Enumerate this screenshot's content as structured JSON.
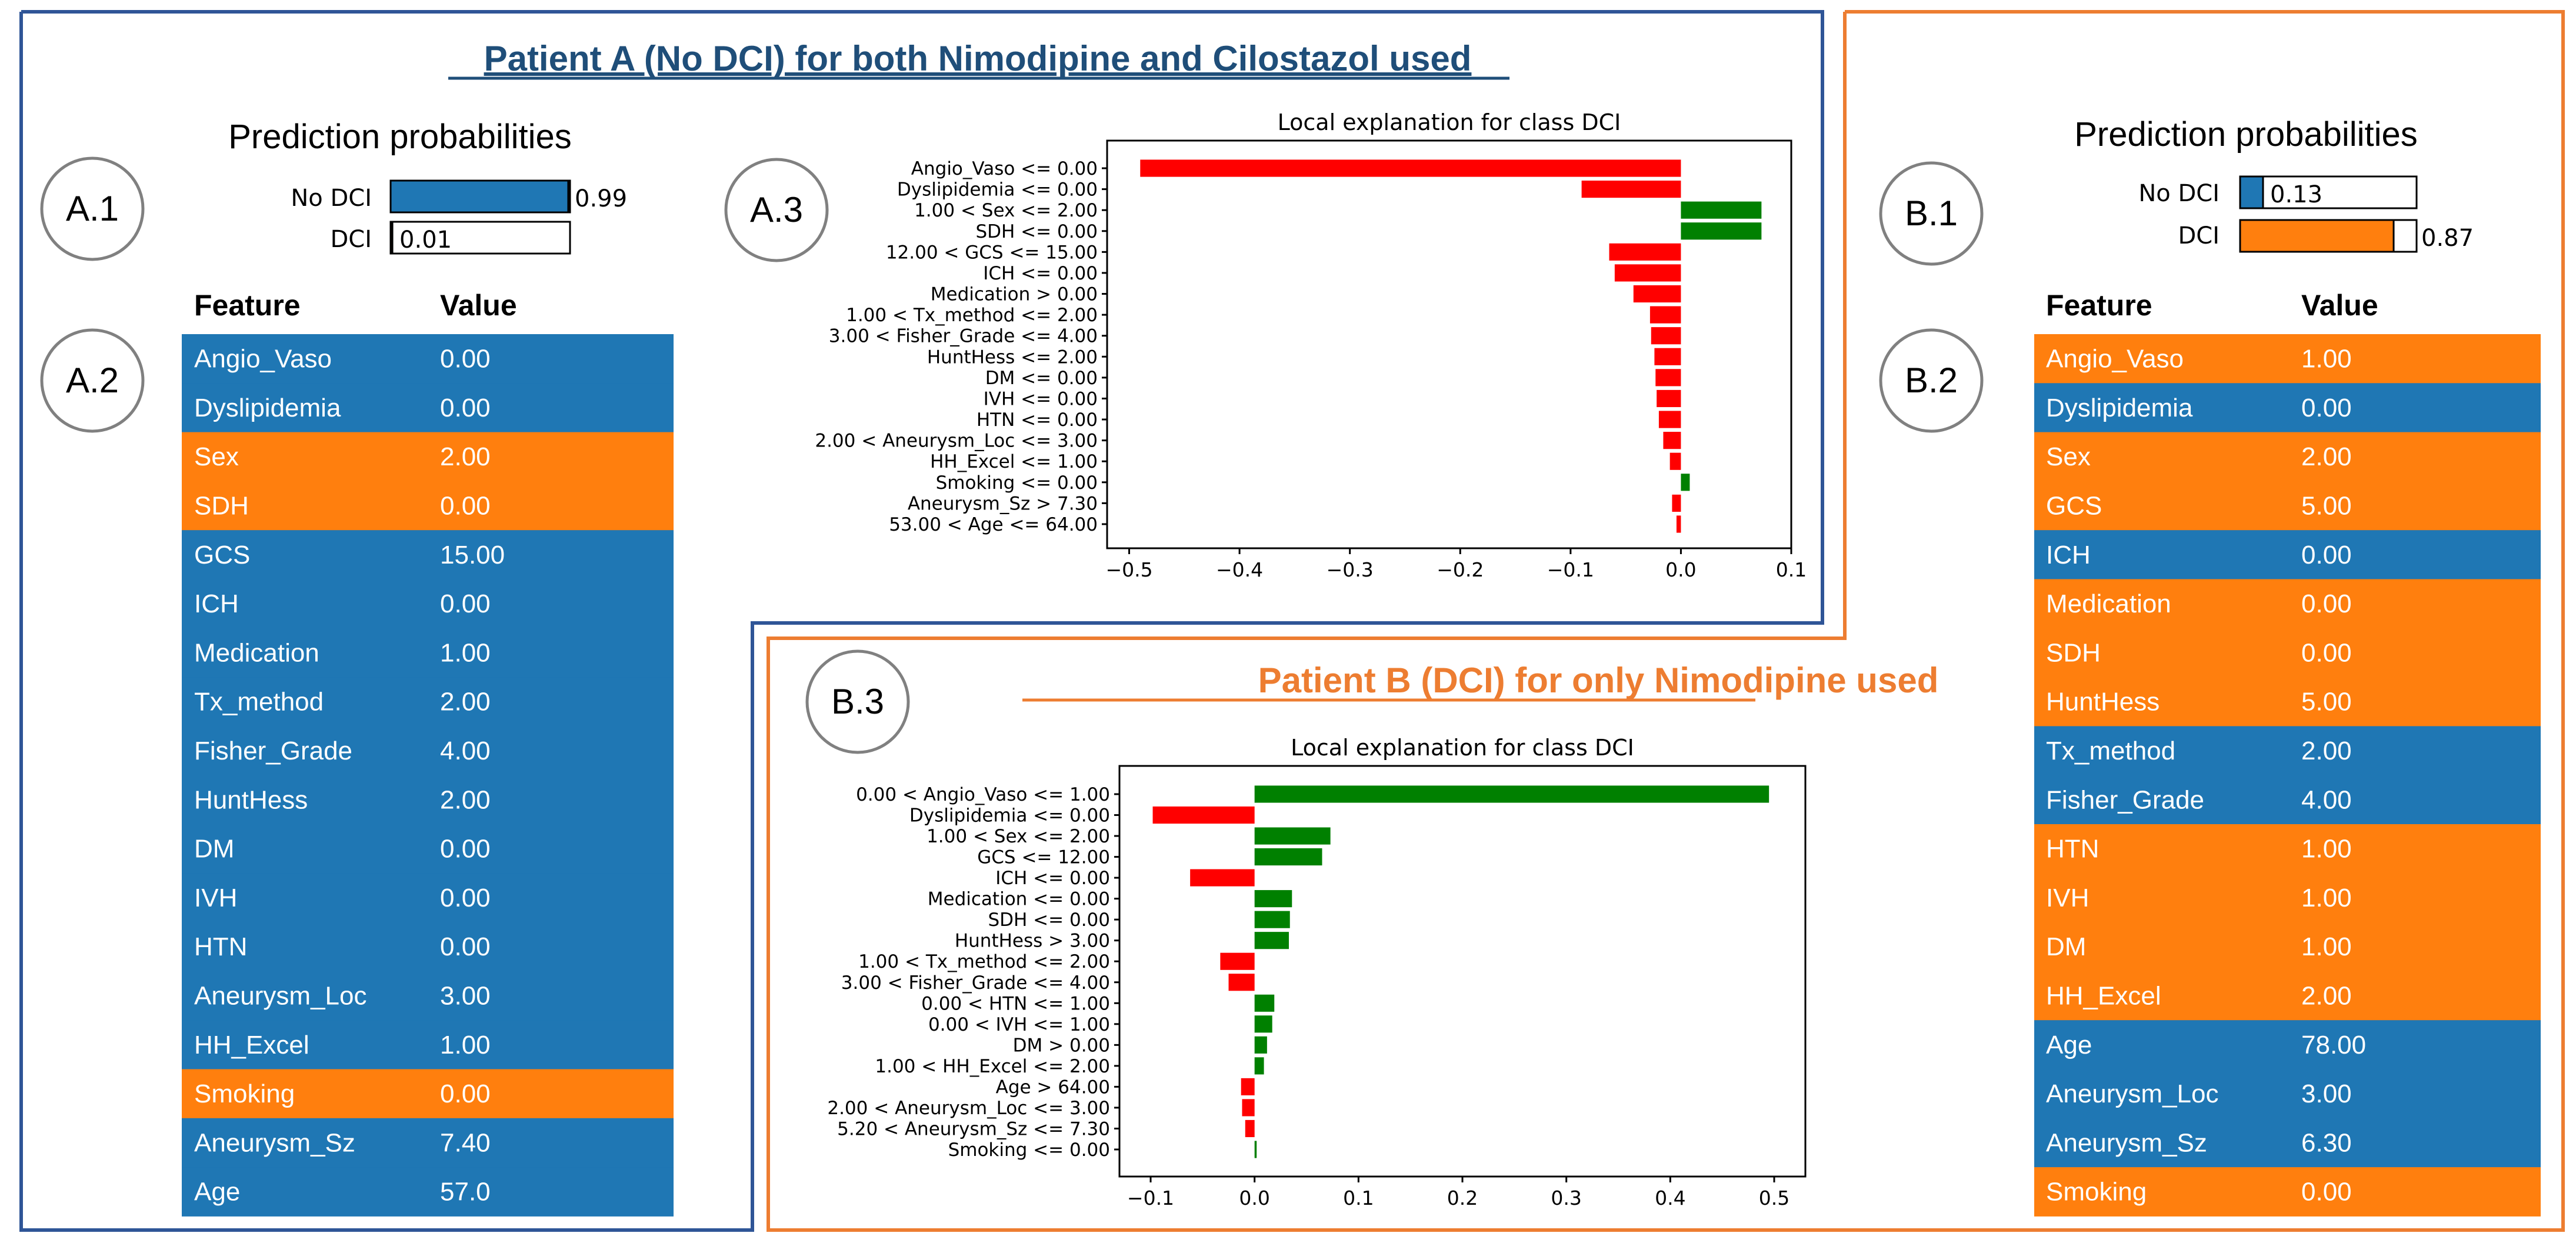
{
  "colors": {
    "blue": "#1f77b4",
    "orange": "#ff7f0e",
    "red": "#ff0000",
    "green": "#008000",
    "frame_a": "#2f5597",
    "frame_b": "#ed7d31",
    "title_a": "#1f4e79",
    "title_b": "#ed7d31"
  },
  "patient_a": {
    "title": "Patient A (No DCI) for both Nimodipine and Cilostazol used",
    "labels": {
      "a1": "A.1",
      "a2": "A.2",
      "a3": "A.3"
    },
    "prediction": {
      "title": "Prediction probabilities",
      "rows": [
        {
          "label": "No DCI",
          "value": 0.99,
          "value_text": "0.99",
          "color": "blue"
        },
        {
          "label": "DCI",
          "value": 0.01,
          "value_text": "0.01",
          "color": "orange"
        }
      ]
    },
    "table": {
      "header_feature": "Feature",
      "header_value": "Value",
      "rows": [
        {
          "feature": "Angio_Vaso",
          "value": "0.00",
          "color": "blue"
        },
        {
          "feature": "Dyslipidemia",
          "value": "0.00",
          "color": "blue"
        },
        {
          "feature": "Sex",
          "value": "2.00",
          "color": "orange"
        },
        {
          "feature": "SDH",
          "value": "0.00",
          "color": "orange"
        },
        {
          "feature": "GCS",
          "value": "15.00",
          "color": "blue"
        },
        {
          "feature": "ICH",
          "value": "0.00",
          "color": "blue"
        },
        {
          "feature": "Medication",
          "value": "1.00",
          "color": "blue"
        },
        {
          "feature": "Tx_method",
          "value": "2.00",
          "color": "blue"
        },
        {
          "feature": "Fisher_Grade",
          "value": "4.00",
          "color": "blue"
        },
        {
          "feature": "HuntHess",
          "value": "2.00",
          "color": "blue"
        },
        {
          "feature": "DM",
          "value": "0.00",
          "color": "blue"
        },
        {
          "feature": "IVH",
          "value": "0.00",
          "color": "blue"
        },
        {
          "feature": "HTN",
          "value": "0.00",
          "color": "blue"
        },
        {
          "feature": "Aneurysm_Loc",
          "value": "3.00",
          "color": "blue"
        },
        {
          "feature": "HH_Excel",
          "value": "1.00",
          "color": "blue"
        },
        {
          "feature": "Smoking",
          "value": "0.00",
          "color": "orange"
        },
        {
          "feature": "Aneurysm_Sz",
          "value": "7.40",
          "color": "blue"
        },
        {
          "feature": "Age",
          "value": "57.0",
          "color": "blue"
        }
      ]
    }
  },
  "patient_b": {
    "title": "Patient B (DCI) for only Nimodipine used",
    "labels": {
      "b1": "B.1",
      "b2": "B.2",
      "b3": "B.3"
    },
    "prediction": {
      "title": "Prediction probabilities",
      "rows": [
        {
          "label": "No DCI",
          "value": 0.13,
          "value_text": "0.13",
          "color": "blue"
        },
        {
          "label": "DCI",
          "value": 0.87,
          "value_text": "0.87",
          "color": "orange"
        }
      ]
    },
    "table": {
      "header_feature": "Feature",
      "header_value": "Value",
      "rows": [
        {
          "feature": "Angio_Vaso",
          "value": "1.00",
          "color": "orange"
        },
        {
          "feature": "Dyslipidemia",
          "value": "0.00",
          "color": "blue"
        },
        {
          "feature": "Sex",
          "value": "2.00",
          "color": "orange"
        },
        {
          "feature": "GCS",
          "value": "5.00",
          "color": "orange"
        },
        {
          "feature": "ICH",
          "value": "0.00",
          "color": "blue"
        },
        {
          "feature": "Medication",
          "value": "0.00",
          "color": "orange"
        },
        {
          "feature": "SDH",
          "value": "0.00",
          "color": "orange"
        },
        {
          "feature": "HuntHess",
          "value": "5.00",
          "color": "orange"
        },
        {
          "feature": "Tx_method",
          "value": "2.00",
          "color": "blue"
        },
        {
          "feature": "Fisher_Grade",
          "value": "4.00",
          "color": "blue"
        },
        {
          "feature": "HTN",
          "value": "1.00",
          "color": "orange"
        },
        {
          "feature": "IVH",
          "value": "1.00",
          "color": "orange"
        },
        {
          "feature": "DM",
          "value": "1.00",
          "color": "orange"
        },
        {
          "feature": "HH_Excel",
          "value": "2.00",
          "color": "orange"
        },
        {
          "feature": "Age",
          "value": "78.00",
          "color": "blue"
        },
        {
          "feature": "Aneurysm_Loc",
          "value": "3.00",
          "color": "blue"
        },
        {
          "feature": "Aneurysm_Sz",
          "value": "6.30",
          "color": "blue"
        },
        {
          "feature": "Smoking",
          "value": "0.00",
          "color": "orange"
        }
      ]
    }
  },
  "chart_data": [
    {
      "type": "bar",
      "orientation": "horizontal",
      "title": "Local explanation for class DCI",
      "xlim": [
        -0.52,
        0.1
      ],
      "xticks": [
        -0.5,
        -0.4,
        -0.3,
        -0.2,
        -0.1,
        0.0,
        0.1
      ],
      "xtick_labels": [
        "−0.5",
        "−0.4",
        "−0.3",
        "−0.2",
        "−0.1",
        "0.0",
        "0.1"
      ],
      "grid": false,
      "categories": [
        "Angio_Vaso <= 0.00",
        "Dyslipidemia <= 0.00",
        "1.00 < Sex <= 2.00",
        "SDH <= 0.00",
        "12.00 < GCS <= 15.00",
        "ICH <= 0.00",
        "Medication > 0.00",
        "1.00 < Tx_method <= 2.00",
        "3.00 < Fisher_Grade <= 4.00",
        "HuntHess <= 2.00",
        "DM <= 0.00",
        "IVH <= 0.00",
        "HTN <= 0.00",
        "2.00 < Aneurysm_Loc <= 3.00",
        "HH_Excel <= 1.00",
        "Smoking <= 0.00",
        "Aneurysm_Sz > 7.30",
        "53.00 < Age <= 64.00"
      ],
      "values": [
        -0.49,
        -0.09,
        0.073,
        0.073,
        -0.065,
        -0.06,
        -0.043,
        -0.028,
        -0.027,
        -0.024,
        -0.023,
        -0.022,
        -0.02,
        -0.016,
        -0.01,
        0.008,
        -0.008,
        -0.004
      ]
    },
    {
      "type": "bar",
      "orientation": "horizontal",
      "title": "Local explanation for class DCI",
      "xlim": [
        -0.13,
        0.53
      ],
      "xticks": [
        -0.1,
        0.0,
        0.1,
        0.2,
        0.3,
        0.4,
        0.5
      ],
      "xtick_labels": [
        "−0.1",
        "0.0",
        "0.1",
        "0.2",
        "0.3",
        "0.4",
        "0.5"
      ],
      "grid": false,
      "categories": [
        "0.00 < Angio_Vaso <= 1.00",
        "Dyslipidemia <= 0.00",
        "1.00 < Sex <= 2.00",
        "GCS <= 12.00",
        "ICH <= 0.00",
        "Medication <= 0.00",
        "SDH <= 0.00",
        "HuntHess > 3.00",
        "1.00 < Tx_method <= 2.00",
        "3.00 < Fisher_Grade <= 4.00",
        "0.00 < HTN <= 1.00",
        "0.00 < IVH <= 1.00",
        "DM > 0.00",
        "1.00 < HH_Excel <= 2.00",
        "Age > 64.00",
        "2.00 < Aneurysm_Loc <= 3.00",
        "5.20 < Aneurysm_Sz <= 7.30",
        "Smoking <= 0.00"
      ],
      "values": [
        0.495,
        -0.098,
        0.073,
        0.065,
        -0.062,
        0.036,
        0.034,
        0.033,
        -0.033,
        -0.025,
        0.019,
        0.017,
        0.012,
        0.009,
        -0.013,
        -0.012,
        -0.009,
        0.002
      ]
    }
  ]
}
